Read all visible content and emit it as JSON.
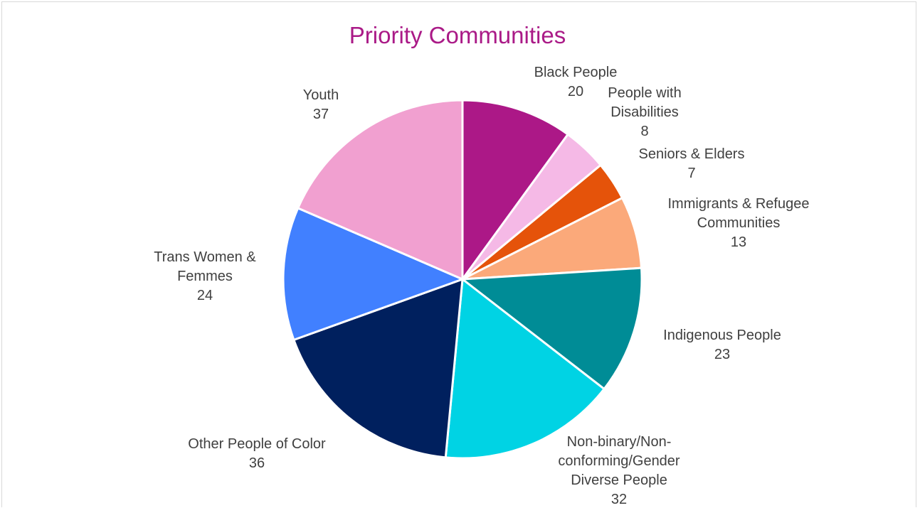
{
  "chart_data": {
    "type": "pie",
    "title": "Priority Communities",
    "title_color": "#AA1A87",
    "label_color": "#404040",
    "slices": [
      {
        "label": [
          "Black People"
        ],
        "value": 20,
        "color": "#AC1887"
      },
      {
        "label": [
          "People with",
          "Disabilities"
        ],
        "value": 8,
        "color": "#F5B9E6"
      },
      {
        "label": [
          "Seniors & Elders"
        ],
        "value": 7,
        "color": "#E5530A"
      },
      {
        "label": [
          "Immigrants & Refugee",
          "Communities"
        ],
        "value": 13,
        "color": "#FBA97A"
      },
      {
        "label": [
          "Indigenous People"
        ],
        "value": 23,
        "color": "#008C96"
      },
      {
        "label": [
          "Non-binary/Non-",
          "conforming/Gender",
          "Diverse People"
        ],
        "value": 32,
        "color": "#00D3E4"
      },
      {
        "label": [
          "Other People of Color"
        ],
        "value": 36,
        "color": "#00205E"
      },
      {
        "label": [
          "Trans Women &",
          "Femmes"
        ],
        "value": 24,
        "color": "#4180FF"
      },
      {
        "label": [
          "Youth"
        ],
        "value": 37,
        "color": "#F1A0D0"
      }
    ]
  }
}
